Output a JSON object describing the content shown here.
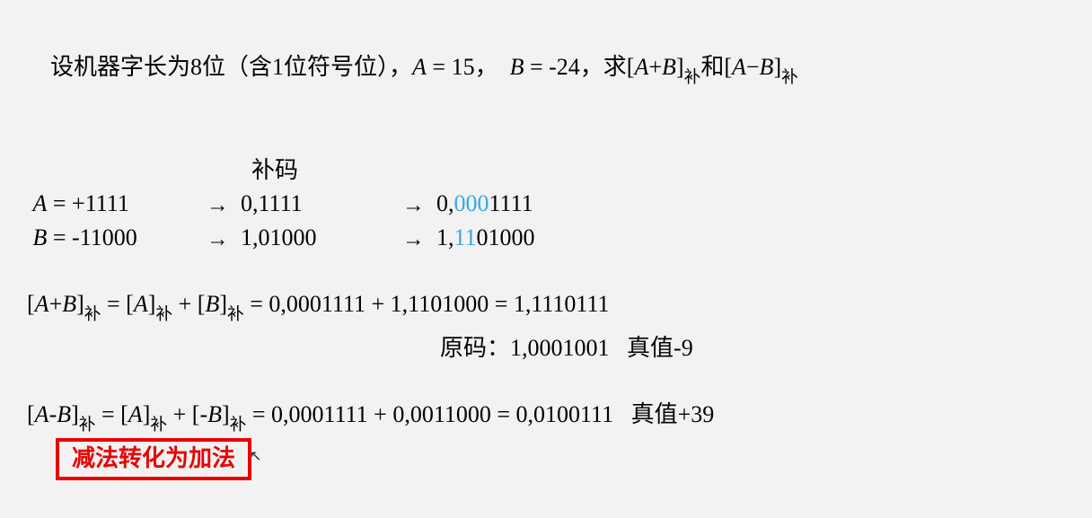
{
  "problem": {
    "prefix": "设机器字长为8位（含1位符号位），",
    "A_eq": " = 15，  ",
    "B_eq": " = -24，",
    "ask_prefix": "求[",
    "ask_mid1": "+",
    "ask_mid2": "]",
    "sub": "补",
    "ask_and": "和[",
    "ask_mid3": "−",
    "ask_end": "]"
  },
  "heading_buma": "补码",
  "rows": {
    "A": {
      "lhs_var": "A",
      "lhs_rest": " = +1111",
      "mid": "0,1111",
      "rhs_plain1": "0,",
      "rhs_hl": "000",
      "rhs_plain2": "1111"
    },
    "B": {
      "lhs_var": "B",
      "lhs_rest": " = -11000",
      "mid": "1,01000",
      "rhs_plain1": "1,",
      "rhs_hl": "11",
      "rhs_plain2": "01000"
    }
  },
  "arrow": "→",
  "eq1": {
    "t1": "[",
    "t2": "A",
    "t3": "+",
    "t4": "B",
    "t5": "]",
    "t6": " = [",
    "t7": "A",
    "t8": "]",
    "t9": " + [",
    "t10": "B",
    "t11": "]",
    "rhs": " = 0,0001111 + 1,1101000 = 1,1110111"
  },
  "origin_line": {
    "label": "原码：",
    "value": "1,0001001",
    "true_label": "   真值",
    "true_value": "-9"
  },
  "eq2": {
    "t1": "[",
    "t2": "A",
    "t3": "-",
    "t4": "B",
    "t5": "]",
    "t6": " = [",
    "t7": "A",
    "t8": "]",
    "t9": " + [-",
    "t10": "B",
    "t11": "]",
    "rhs": " = 0,0001111 + 0,0011000 = 0,0100111",
    "true_label": "   真值",
    "true_value": "+39"
  },
  "redbox": "减法转化为加法",
  "sub_label": "补"
}
